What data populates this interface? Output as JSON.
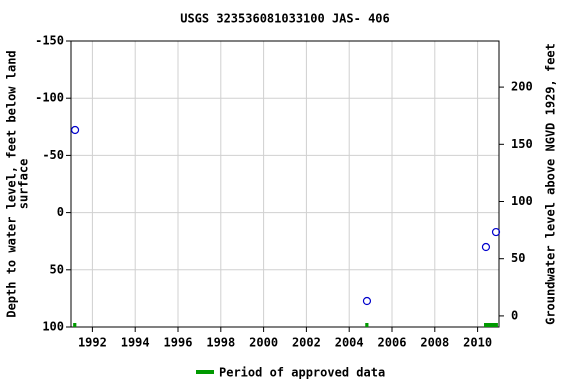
{
  "chart_data": {
    "type": "scatter",
    "title": "USGS 323536081033100 JAS- 406",
    "ylabel": [
      "Depth to water level, feet below land",
      "surface"
    ],
    "y2label": "Groundwater level above NGVD 1929, feet",
    "x": [
      1991.19,
      2004.83,
      2010.39,
      2010.86
    ],
    "series": [
      {
        "name": "Depth to water level",
        "color": "#0000cc",
        "values": [
          -72.2,
          77.3,
          30.1,
          17.0
        ]
      }
    ],
    "xlim": [
      1991.0,
      2011.0
    ],
    "xticks": [
      1992,
      1994,
      1996,
      1998,
      2000,
      2002,
      2004,
      2006,
      2008,
      2010
    ],
    "ylim": [
      100,
      -150
    ],
    "yticks": [
      -150,
      -100,
      -50,
      0,
      50,
      100
    ],
    "y2lim": [
      -9.7,
      240.3
    ],
    "y2ticks": [
      0,
      50,
      100,
      150,
      200
    ],
    "grid": true,
    "approved_periods": {
      "name": "Period of approved data",
      "color": "#009900",
      "start": [
        1991.1,
        2004.75,
        2010.3
      ],
      "end": [
        1991.25,
        2004.9,
        2010.95
      ]
    }
  }
}
